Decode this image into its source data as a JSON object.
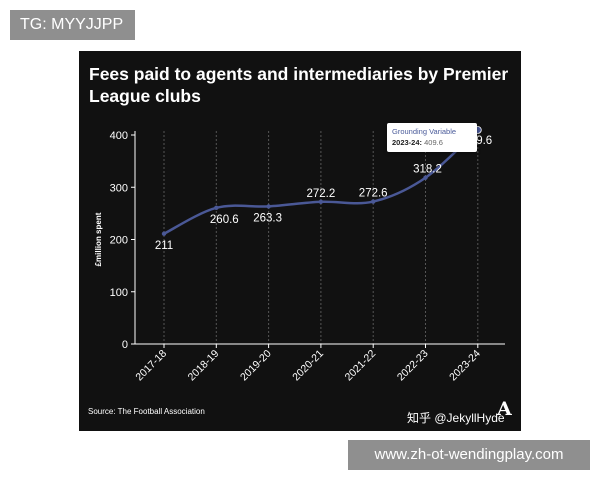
{
  "top_badge": "TG: MYYJJPP",
  "bottom_badge": "www.zh-ot-wendingplay.com",
  "credit": "知乎 @JekyllHyde",
  "logo": "A",
  "source": "Source: The Football Association",
  "tooltip": {
    "series": "Grounding Variable",
    "label": "2023-24:",
    "value": "409.6"
  },
  "colors": {
    "panel": "#111111",
    "line": "#4a5896",
    "grid": "#555555",
    "text": "#ffffff"
  },
  "chart_data": {
    "type": "line",
    "title": "Fees paid to agents and intermediaries by Premier League clubs",
    "xlabel": "",
    "ylabel": "£million spent",
    "ylim": [
      0,
      400
    ],
    "yticks": [
      0,
      100,
      200,
      300,
      400
    ],
    "grid": "vertical",
    "categories": [
      "2017-18",
      "2018-19",
      "2019-20",
      "2020-21",
      "2021-22",
      "2022-23",
      "2023-24"
    ],
    "series": [
      {
        "name": "Grounding Variable",
        "values": [
          211,
          260.6,
          263.3,
          272.2,
          272.6,
          318.2,
          409.6
        ],
        "labels": [
          "211",
          "260.6",
          "263.3",
          "272.2",
          "272.6",
          "318.2",
          "409.6"
        ]
      }
    ]
  }
}
